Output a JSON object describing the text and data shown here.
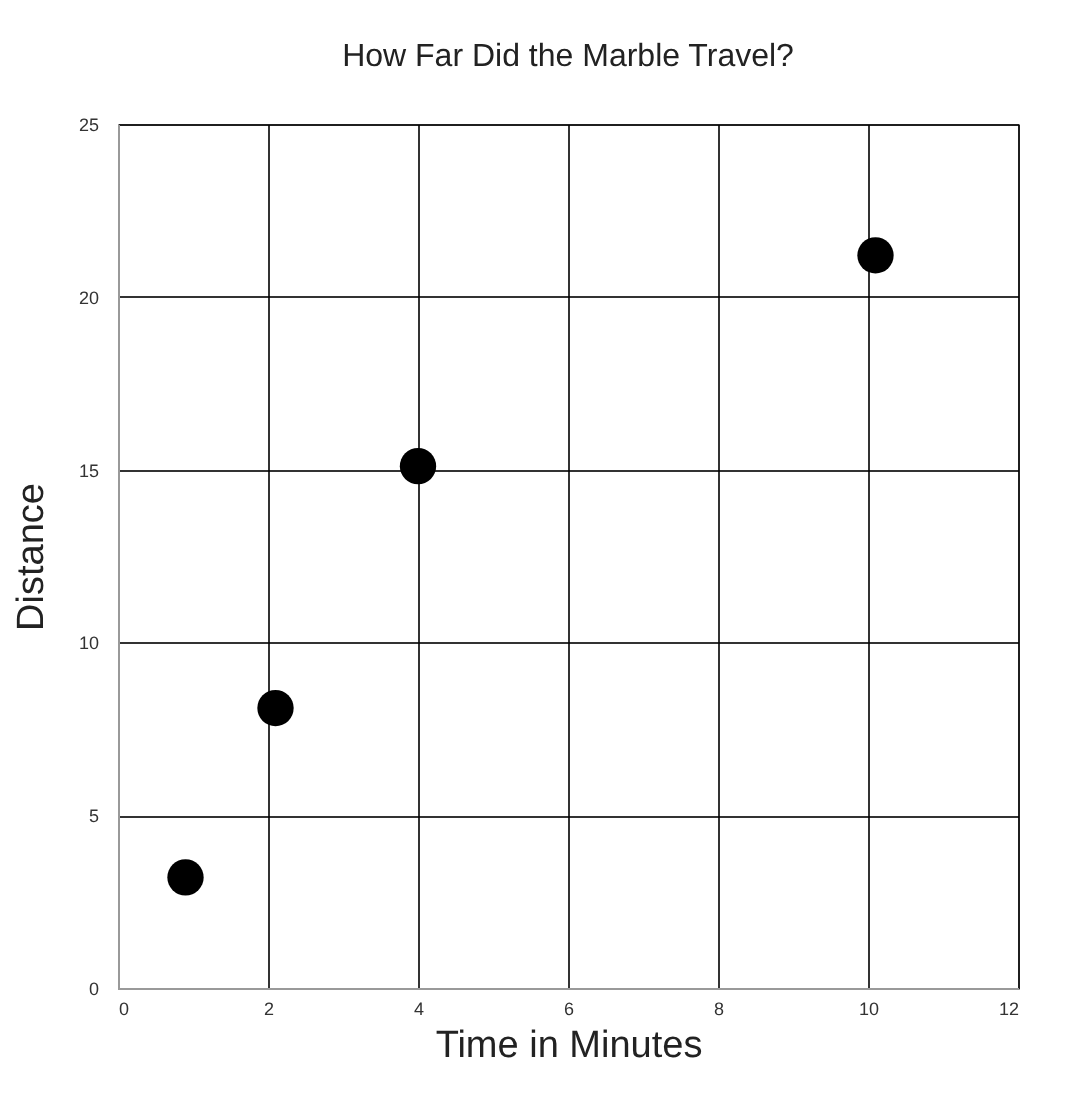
{
  "chart_data": {
    "type": "scatter",
    "title": "How Far Did the Marble Travel?",
    "xlabel": "Time in Minutes",
    "ylabel": "Distance",
    "series": [
      {
        "color": "#000000",
        "x": [
          0.9,
          2.1,
          4,
          10.1
        ],
        "values": [
          3.2,
          8.1,
          15.1,
          21.2
        ]
      }
    ],
    "xlim": [
      0,
      12
    ],
    "xticks": [
      0,
      2,
      4,
      6,
      8,
      10,
      12
    ],
    "ylim": [
      0,
      25
    ],
    "yticks": [
      0,
      5,
      10,
      15,
      20,
      25
    ],
    "grid": true,
    "marker": "circle"
  }
}
